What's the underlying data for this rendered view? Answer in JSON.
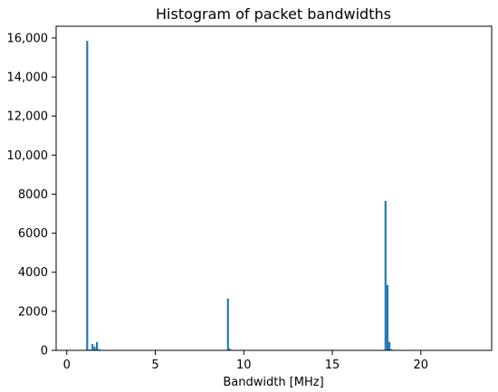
{
  "chart_data": {
    "type": "bar",
    "title": "Histogram of packet bandwidths",
    "xlabel": "Bandwidth [MHz]",
    "ylabel": "",
    "xlim": [
      -0.6,
      24.0
    ],
    "ylim": [
      0,
      16600
    ],
    "x_ticks": [
      0,
      5,
      10,
      15,
      20
    ],
    "x_tick_labels": [
      "0",
      "5",
      "10",
      "15",
      "20"
    ],
    "y_ticks": [
      0,
      2000,
      4000,
      6000,
      8000,
      10000,
      12000,
      14000,
      16000
    ],
    "y_tick_labels": [
      "0",
      "2000",
      "4000",
      "6000",
      "8000",
      "10,000",
      "12,000",
      "14,000",
      "16,000"
    ],
    "bin_width": 0.11,
    "series": [
      {
        "color": "#1f77b4",
        "bins": [
          {
            "x": 1.1,
            "value": 15850
          },
          {
            "x": 1.25,
            "value": 50
          },
          {
            "x": 1.4,
            "value": 330
          },
          {
            "x": 1.52,
            "value": 180
          },
          {
            "x": 1.65,
            "value": 430
          },
          {
            "x": 1.78,
            "value": 60
          },
          {
            "x": 9.05,
            "value": 2650
          },
          {
            "x": 9.16,
            "value": 80
          },
          {
            "x": 17.95,
            "value": 7650
          },
          {
            "x": 18.06,
            "value": 3350
          },
          {
            "x": 18.17,
            "value": 430
          },
          {
            "x": 18.28,
            "value": 60
          }
        ]
      }
    ]
  }
}
